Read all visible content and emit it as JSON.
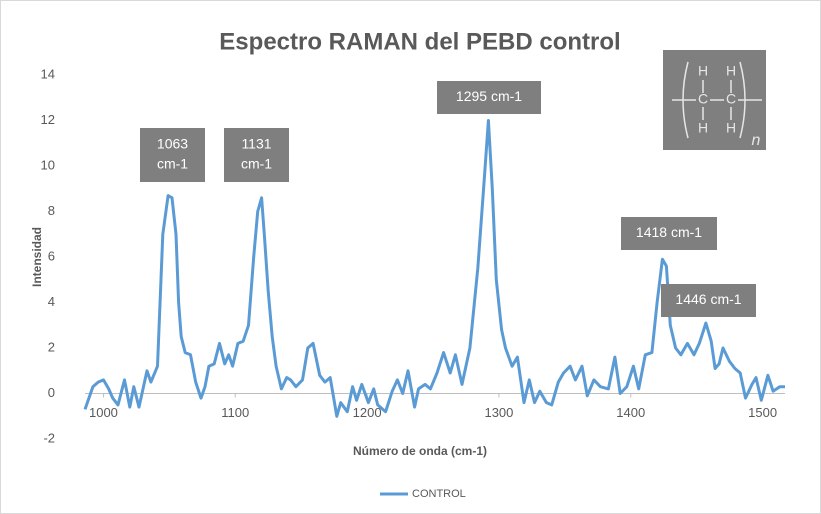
{
  "chart_data": {
    "type": "line",
    "title": "Espectro RAMAN del PEBD control",
    "x_label": "Número de onda (cm-1)",
    "y_label": "Intensidad",
    "xlim": [
      986,
      1517
    ],
    "xticks": [
      1000,
      1100,
      1200,
      1300,
      1400,
      1500
    ],
    "ylim": [
      -2,
      14
    ],
    "yticks": [
      -2,
      0,
      2,
      4,
      6,
      8,
      10,
      12,
      14
    ],
    "grid": false,
    "legend": "bottom",
    "x": [
      986,
      992,
      996,
      1000,
      1004,
      1007,
      1011,
      1016,
      1020,
      1023,
      1027,
      1033,
      1036,
      1041,
      1045,
      1049,
      1052,
      1055,
      1057,
      1059,
      1062,
      1066,
      1070,
      1074,
      1077,
      1080,
      1084,
      1088,
      1092,
      1095,
      1098,
      1102,
      1106,
      1110,
      1114,
      1117,
      1120,
      1122,
      1125,
      1128,
      1131,
      1135,
      1139,
      1142,
      1146,
      1151,
      1155,
      1159,
      1164,
      1168,
      1172,
      1177,
      1180,
      1185,
      1189,
      1192,
      1196,
      1201,
      1205,
      1208,
      1214,
      1219,
      1223,
      1227,
      1231,
      1236,
      1239,
      1244,
      1248,
      1253,
      1258,
      1263,
      1267,
      1272,
      1278,
      1284,
      1289,
      1292,
      1295,
      1298,
      1302,
      1305,
      1310,
      1314,
      1319,
      1323,
      1327,
      1331,
      1336,
      1340,
      1345,
      1349,
      1354,
      1358,
      1363,
      1367,
      1372,
      1377,
      1383,
      1388,
      1392,
      1397,
      1402,
      1406,
      1411,
      1416,
      1420,
      1424,
      1427,
      1430,
      1434,
      1438,
      1443,
      1448,
      1452,
      1457,
      1461,
      1464,
      1467,
      1470,
      1475,
      1479,
      1483,
      1487,
      1492,
      1495,
      1499,
      1504,
      1508,
      1513,
      1517
    ],
    "series": [
      {
        "name": "CONTROL",
        "color": "#5b9bd5",
        "values": [
          -0.7,
          0.3,
          0.5,
          0.6,
          0.2,
          -0.2,
          -0.5,
          0.6,
          -0.6,
          0.3,
          -0.6,
          1.0,
          0.5,
          1.2,
          7,
          8.7,
          8.6,
          7,
          4,
          2.5,
          1.8,
          1.7,
          0.5,
          -0.2,
          0.3,
          1.2,
          1.3,
          2.2,
          1.3,
          1.7,
          1.2,
          2.2,
          2.3,
          3,
          6,
          8,
          8.6,
          7,
          4.5,
          2.5,
          1.2,
          0.2,
          0.7,
          0.6,
          0.3,
          0.6,
          2,
          2.2,
          0.8,
          0.5,
          0.7,
          -1,
          -0.4,
          -0.8,
          0.3,
          -0.3,
          0.4,
          -0.4,
          0.2,
          -0.5,
          -0.8,
          0.1,
          0.6,
          0,
          1,
          -0.6,
          0.2,
          0.4,
          0.2,
          0.9,
          1.8,
          0.9,
          1.7,
          0.4,
          2,
          5.5,
          9.5,
          12,
          9,
          5,
          2.8,
          2,
          1.2,
          1.6,
          -0.4,
          0.6,
          -0.4,
          0.1,
          -0.4,
          -0.5,
          0.5,
          0.9,
          1.2,
          0.6,
          1.2,
          -0.1,
          0.6,
          0.3,
          0.2,
          1.6,
          0,
          0.3,
          1.2,
          0.2,
          1.7,
          1.8,
          4,
          5.9,
          5.6,
          3,
          2,
          1.7,
          2.2,
          1.7,
          2.2,
          3.1,
          2.3,
          1.1,
          1.3,
          2,
          1.4,
          1.1,
          0.9,
          -0.2,
          0.4,
          0.7,
          -0.3,
          0.8,
          0.1,
          0.3,
          0.3
        ]
      }
    ],
    "annotations": [
      {
        "lines": [
          "1063",
          "cm-1"
        ]
      },
      {
        "lines": [
          "1131",
          "cm-1"
        ]
      },
      {
        "lines": [
          "1295 cm-1"
        ]
      },
      {
        "lines": [
          "1418 cm-1"
        ]
      },
      {
        "lines": [
          "1446 cm-1"
        ]
      }
    ],
    "inset": {
      "hydrogen": "H",
      "carbon": "C",
      "subscript": "n"
    }
  }
}
